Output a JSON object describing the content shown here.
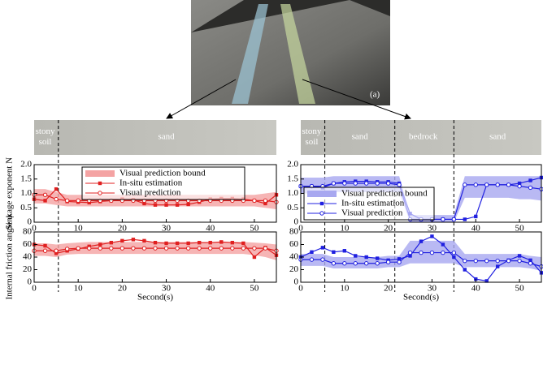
{
  "photo": {
    "label": "(a)"
  },
  "terrain_strips": [
    {
      "xlim": [
        0,
        55
      ],
      "boundaries": [
        5.5
      ],
      "segments": [
        {
          "label": [
            "stony",
            "soil"
          ],
          "at": 2.5
        },
        {
          "label": [
            "sand"
          ],
          "at": 30
        }
      ]
    },
    {
      "xlim": [
        0,
        55
      ],
      "boundaries": [
        5.5,
        21.5,
        35
      ],
      "segments": [
        {
          "label": [
            "stony",
            "soil"
          ],
          "at": 2.5
        },
        {
          "label": [
            "sand"
          ],
          "at": 13.5
        },
        {
          "label": [
            "bedrock"
          ],
          "at": 28
        },
        {
          "label": [
            "sand"
          ],
          "at": 45
        }
      ]
    }
  ],
  "chart_data": [
    {
      "type": "line",
      "ylabel": "Sinkage exponent N",
      "legend": "upper center",
      "xlim": [
        0,
        55
      ],
      "xticks": [
        0,
        10,
        20,
        30,
        40,
        50
      ],
      "ylim": [
        0,
        2
      ],
      "yticks": [
        0,
        0.5,
        {
          "value": 1,
          "label": "1.0"
        },
        1.5,
        {
          "value": 2,
          "label": "2.0"
        }
      ],
      "x": [
        0,
        2.5,
        5,
        7.5,
        10,
        12.5,
        15,
        17.5,
        20,
        22.5,
        25,
        27.5,
        30,
        32.5,
        35,
        37.5,
        40,
        42.5,
        45,
        47.5,
        50,
        52.5,
        55
      ],
      "band": {
        "name": "Visual prediction bound",
        "color": "#f4a3a3",
        "lower": [
          0.65,
          0.65,
          0.6,
          0.55,
          0.55,
          0.55,
          0.55,
          0.55,
          0.55,
          0.55,
          0.55,
          0.55,
          0.55,
          0.55,
          0.55,
          0.55,
          0.55,
          0.55,
          0.55,
          0.55,
          0.55,
          0.5,
          0.45
        ],
        "upper": [
          1.15,
          1.15,
          1.05,
          0.95,
          0.95,
          0.95,
          0.95,
          0.95,
          0.95,
          0.95,
          0.95,
          0.95,
          0.95,
          0.95,
          0.95,
          0.95,
          0.95,
          0.95,
          0.95,
          0.95,
          0.95,
          1.0,
          1.05
        ]
      },
      "series": [
        {
          "name": "In-situ estimation",
          "color": "#e02020",
          "marker": "square",
          "values": [
            0.8,
            0.75,
            1.15,
            0.72,
            0.7,
            0.68,
            0.72,
            0.75,
            0.8,
            0.78,
            0.65,
            0.6,
            0.6,
            0.6,
            0.62,
            0.7,
            0.8,
            0.82,
            0.82,
            0.8,
            0.75,
            0.65,
            0.95
          ]
        },
        {
          "name": "Visual prediction",
          "color": "#e02020",
          "marker": "circle",
          "values": [
            0.95,
            0.95,
            0.8,
            0.75,
            0.75,
            0.75,
            0.75,
            0.75,
            0.75,
            0.75,
            0.75,
            0.75,
            0.75,
            0.75,
            0.75,
            0.75,
            0.75,
            0.75,
            0.75,
            0.75,
            0.75,
            0.75,
            0.7
          ]
        }
      ]
    },
    {
      "type": "line",
      "legend": "lower left",
      "xlim": [
        0,
        55
      ],
      "xticks": [
        0,
        10,
        20,
        30,
        40,
        50
      ],
      "ylim": [
        0,
        2
      ],
      "yticks": [
        0,
        0.5,
        {
          "value": 1,
          "label": "1.0"
        },
        1.5,
        {
          "value": 2,
          "label": "2.0"
        }
      ],
      "x": [
        0,
        2.5,
        5,
        7.5,
        10,
        12.5,
        15,
        17.5,
        20,
        22.5,
        25,
        27.5,
        30,
        32.5,
        35,
        37.5,
        40,
        42.5,
        45,
        47.5,
        50,
        52.5,
        55
      ],
      "band": {
        "name": "Visual prediction bound",
        "color": "#a8a8f0",
        "lower": [
          1.0,
          1.0,
          1.0,
          1.05,
          1.05,
          1.05,
          1.05,
          1.05,
          1.05,
          1.05,
          0.0,
          0.0,
          0.0,
          0.0,
          0.0,
          0.85,
          0.85,
          0.85,
          0.85,
          0.85,
          0.8,
          0.8,
          0.75
        ],
        "upper": [
          1.55,
          1.55,
          1.55,
          1.6,
          1.6,
          1.6,
          1.6,
          1.6,
          1.6,
          1.6,
          0.25,
          0.25,
          0.25,
          0.25,
          0.25,
          1.6,
          1.6,
          1.6,
          1.6,
          1.6,
          1.6,
          1.6,
          1.6
        ]
      },
      "series": [
        {
          "name": "In-situ estimation",
          "color": "#2020e0",
          "marker": "square",
          "values": [
            1.25,
            1.25,
            1.2,
            1.35,
            1.4,
            1.42,
            1.42,
            1.4,
            1.4,
            1.35,
            0.3,
            0.1,
            0.1,
            0.1,
            0.1,
            0.1,
            0.2,
            1.3,
            1.3,
            1.3,
            1.35,
            1.45,
            1.55
          ]
        },
        {
          "name": "Visual prediction",
          "color": "#2020e0",
          "marker": "circle",
          "values": [
            1.25,
            1.25,
            1.25,
            1.35,
            1.35,
            1.35,
            1.35,
            1.35,
            1.35,
            1.3,
            0.1,
            0.1,
            0.1,
            0.1,
            0.1,
            1.3,
            1.3,
            1.3,
            1.3,
            1.3,
            1.25,
            1.2,
            1.15
          ]
        }
      ]
    },
    {
      "type": "line",
      "ylabel": "Internal friction angle φ",
      "xlabel": "Second(s)",
      "xlim": [
        0,
        55
      ],
      "xticks": [
        0,
        10,
        20,
        30,
        40,
        50
      ],
      "ylim": [
        0,
        80
      ],
      "yticks": [
        0,
        20,
        40,
        60,
        80
      ],
      "x": [
        0,
        2.5,
        5,
        7.5,
        10,
        12.5,
        15,
        17.5,
        20,
        22.5,
        25,
        27.5,
        30,
        32.5,
        35,
        37.5,
        40,
        42.5,
        45,
        47.5,
        50,
        52.5,
        55
      ],
      "band": {
        "color": "#f4a3a3",
        "lower": [
          42,
          42,
          40,
          44,
          45,
          45,
          45,
          45,
          45,
          45,
          45,
          45,
          45,
          45,
          45,
          45,
          45,
          45,
          45,
          45,
          43,
          40,
          35
        ],
        "upper": [
          62,
          62,
          60,
          62,
          63,
          64,
          64,
          64,
          64,
          64,
          64,
          64,
          64,
          64,
          64,
          64,
          64,
          64,
          64,
          64,
          63,
          62,
          60
        ]
      },
      "series": [
        {
          "color": "#e02020",
          "marker": "square",
          "values": [
            60,
            58,
            46,
            50,
            53,
            57,
            60,
            63,
            66,
            68,
            66,
            63,
            62,
            62,
            62,
            63,
            63,
            64,
            63,
            62,
            40,
            55,
            43
          ]
        },
        {
          "color": "#e02020",
          "marker": "circle",
          "values": [
            50,
            50,
            50,
            53,
            54,
            54,
            54,
            54,
            54,
            54,
            54,
            54,
            54,
            54,
            54,
            54,
            54,
            54,
            54,
            54,
            54,
            54,
            50
          ]
        }
      ]
    },
    {
      "type": "line",
      "xlabel": "Second(s)",
      "xlim": [
        0,
        55
      ],
      "xticks": [
        0,
        10,
        20,
        30,
        40,
        50
      ],
      "ylim": [
        0,
        80
      ],
      "yticks": [
        0,
        20,
        40,
        60,
        80
      ],
      "x": [
        0,
        2.5,
        5,
        7.5,
        10,
        12.5,
        15,
        17.5,
        20,
        22.5,
        25,
        27.5,
        30,
        32.5,
        35,
        37.5,
        40,
        42.5,
        45,
        47.5,
        50,
        52.5,
        55
      ],
      "band": {
        "color": "#a8a8f0",
        "lower": [
          26,
          26,
          26,
          22,
          22,
          22,
          22,
          22,
          24,
          24,
          30,
          30,
          30,
          30,
          30,
          24,
          24,
          24,
          24,
          24,
          24,
          22,
          18
        ],
        "upper": [
          45,
          45,
          45,
          40,
          40,
          40,
          40,
          40,
          42,
          42,
          66,
          66,
          66,
          66,
          66,
          45,
          45,
          45,
          45,
          45,
          45,
          42,
          40
        ]
      },
      "series": [
        {
          "color": "#2020e0",
          "marker": "square",
          "values": [
            40,
            48,
            55,
            48,
            50,
            42,
            40,
            38,
            35,
            37,
            42,
            65,
            73,
            60,
            40,
            20,
            5,
            2,
            25,
            35,
            42,
            35,
            15
          ]
        },
        {
          "color": "#2020e0",
          "marker": "circle",
          "values": [
            36,
            36,
            36,
            30,
            30,
            30,
            30,
            30,
            32,
            32,
            47,
            47,
            47,
            47,
            47,
            34,
            34,
            34,
            34,
            34,
            34,
            30,
            25
          ]
        }
      ]
    }
  ]
}
